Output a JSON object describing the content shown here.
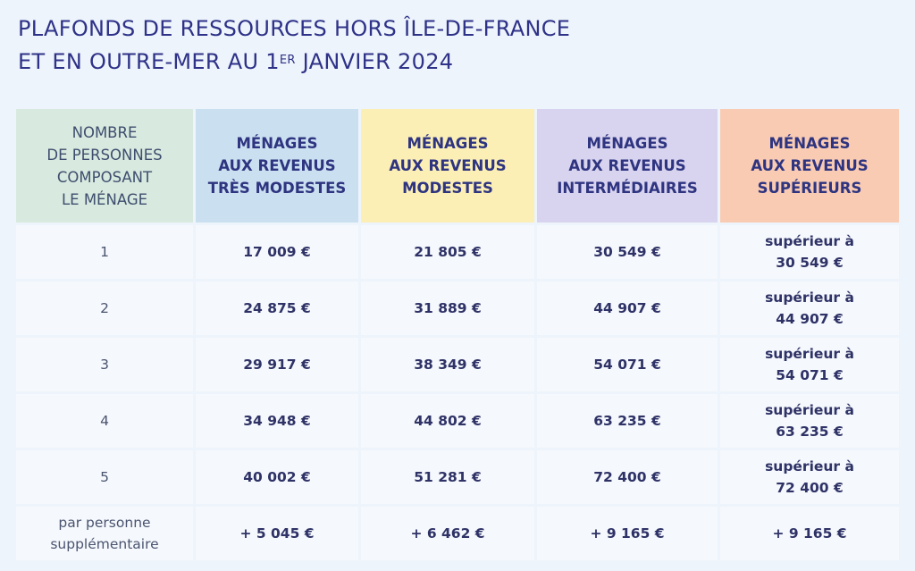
{
  "title": {
    "line1": "PLAFONDS DE RESSOURCES HORS ÎLE-DE-FRANCE",
    "line2_pre": "ET EN OUTRE-MER AU 1",
    "line2_sup": "ER",
    "line2_post": " JANVIER 2024"
  },
  "header_colors": {
    "persons": "#d8eadf",
    "tres_modestes": "#cae0f0",
    "modestes": "#fbefb6",
    "intermediaires": "#d8d3ee",
    "superieurs": "#f9cbb3"
  },
  "headers": [
    [
      "NOMBRE",
      "DE PERSONNES",
      "COMPOSANT",
      "LE MÉNAGE"
    ],
    [
      "MÉNAGES",
      "AUX REVENUS",
      "TRÈS MODESTES"
    ],
    [
      "MÉNAGES",
      "AUX REVENUS",
      "MODESTES"
    ],
    [
      "MÉNAGES",
      "AUX REVENUS",
      "INTERMÉDIAIRES"
    ],
    [
      "MÉNAGES",
      "AUX REVENUS",
      "SUPÉRIEURS"
    ]
  ],
  "rows": [
    {
      "persons": [
        "1"
      ],
      "tres_modestes": "17 009 €",
      "modestes": "21 805 €",
      "intermediaires": "30 549 €",
      "superieurs": [
        "supérieur à",
        "30 549 €"
      ]
    },
    {
      "persons": [
        "2"
      ],
      "tres_modestes": "24 875 €",
      "modestes": "31 889 €",
      "intermediaires": "44 907 €",
      "superieurs": [
        "supérieur à",
        "44 907 €"
      ]
    },
    {
      "persons": [
        "3"
      ],
      "tres_modestes": "29 917 €",
      "modestes": "38 349 €",
      "intermediaires": "54 071 €",
      "superieurs": [
        "supérieur à",
        "54 071 €"
      ]
    },
    {
      "persons": [
        "4"
      ],
      "tres_modestes": "34 948 €",
      "modestes": "44 802 €",
      "intermediaires": "63 235 €",
      "superieurs": [
        "supérieur à",
        "63 235 €"
      ]
    },
    {
      "persons": [
        "5"
      ],
      "tres_modestes": "40 002 €",
      "modestes": "51 281 €",
      "intermediaires": "72 400 €",
      "superieurs": [
        "supérieur à",
        "72 400 €"
      ]
    },
    {
      "persons": [
        "par personne",
        "supplémentaire"
      ],
      "tres_modestes": "+ 5 045 €",
      "modestes": "+ 6 462 €",
      "intermediaires": "+ 9 165 €",
      "superieurs": [
        "+ 9 165 €"
      ]
    }
  ]
}
